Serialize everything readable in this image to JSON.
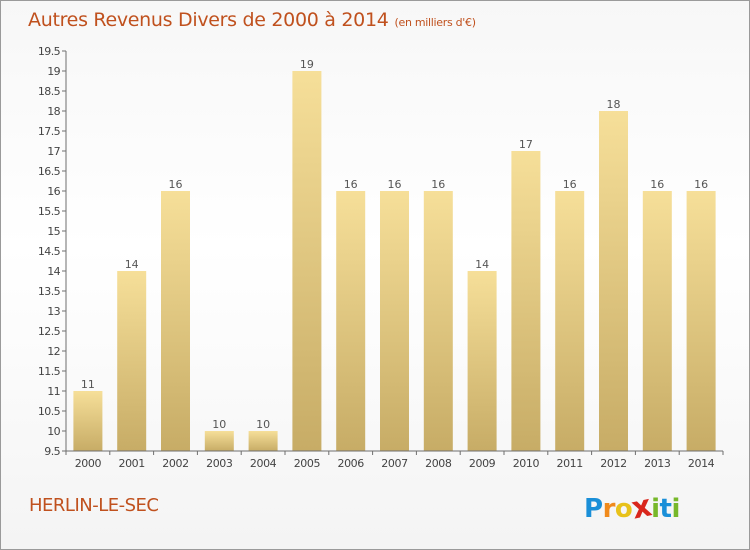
{
  "title": "Autres Revenus Divers de 2000 à 2014",
  "unit": "(en milliers d'€)",
  "location": "HERLIN-LE-SEC",
  "brand": {
    "letters": [
      "P",
      "r",
      "o",
      "x",
      "i",
      "t",
      "i"
    ],
    "colors": [
      "#1a8fd8",
      "#f08a1c",
      "#e8c21a",
      "#d9261c",
      "#77b82a",
      "#1a8fd8",
      "#77b82a"
    ]
  },
  "colors": {
    "bar_light": "#f6df99",
    "bar_dark": "#c7ac66",
    "text": "#c0511e",
    "axis": "#6e6e6e"
  },
  "chart_data": {
    "type": "bar",
    "title": "Autres Revenus Divers de 2000 à 2014",
    "subtitle": "(en milliers d'€)",
    "categories": [
      "2000",
      "2001",
      "2002",
      "2003",
      "2004",
      "2005",
      "2006",
      "2007",
      "2008",
      "2009",
      "2010",
      "2011",
      "2012",
      "2013",
      "2014"
    ],
    "values": [
      11,
      14,
      16,
      10,
      10,
      19,
      16,
      16,
      16,
      14,
      17,
      16,
      18,
      16,
      16
    ],
    "data_labels": [
      "11",
      "14",
      "16",
      "10",
      "10",
      "19",
      "16",
      "16",
      "16",
      "14",
      "17",
      "16",
      "18",
      "16",
      "16"
    ],
    "yticks": [
      "9.5",
      "10",
      "10.5",
      "11",
      "11.5",
      "12",
      "12.5",
      "13",
      "13.5",
      "14",
      "14.5",
      "15",
      "15.5",
      "16",
      "16.5",
      "17",
      "17.5",
      "18",
      "18.5",
      "19",
      "19.5"
    ],
    "ylim": [
      9.5,
      19.5
    ],
    "grid": false,
    "legend": "none"
  }
}
